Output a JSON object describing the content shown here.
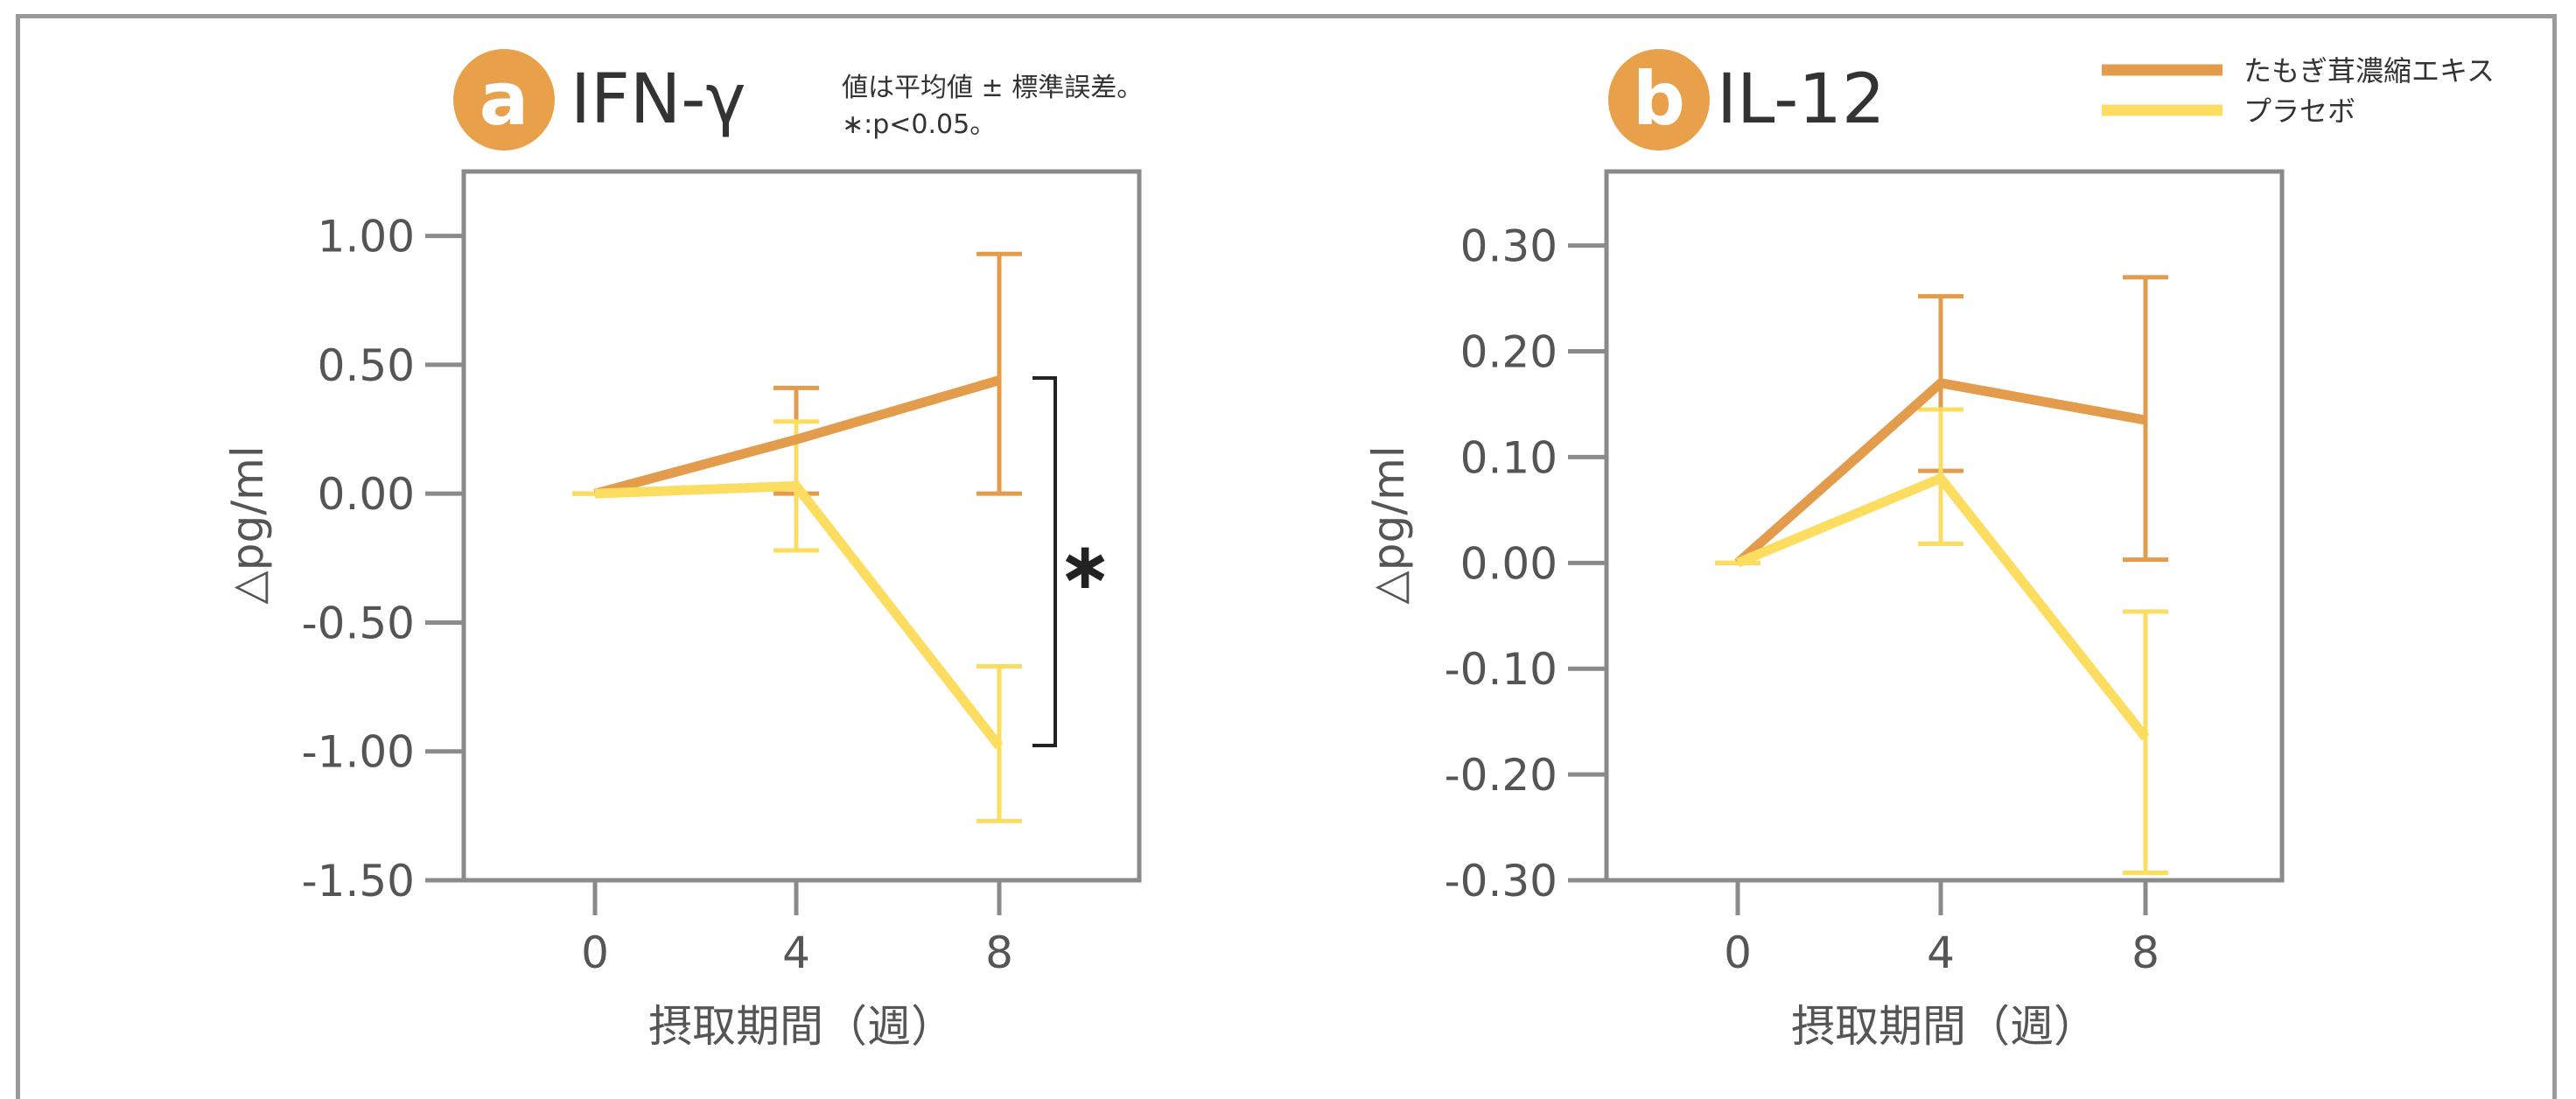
{
  "colors": {
    "extract": "#E39C4C",
    "placebo": "#FCDD5F",
    "axis": "#8a8a8a",
    "badge": "#E8A14A"
  },
  "note": {
    "line1": "値は平均値 ± 標準誤差。",
    "line2": "∗:p<0.05。"
  },
  "legend": {
    "extract_label": "たもぎ茸濃縮エキス",
    "placebo_label": "プラセボ"
  },
  "chart_data": [
    {
      "type": "line",
      "badge": "a",
      "title": "IFN-γ",
      "xlabel": "摂取期間（週）",
      "ylabel": "△pg/ml",
      "x": [
        0,
        4,
        8
      ],
      "x_tick_labels": [
        "0",
        "4",
        "8"
      ],
      "ylim": [
        -1.5,
        1.25
      ],
      "y_ticks": [
        1.0,
        0.5,
        0.0,
        -0.5,
        -1.0,
        -1.5
      ],
      "y_tick_labels": [
        "1.00",
        "0.50",
        "0.00",
        "-0.50",
        "-1.00",
        "-1.50"
      ],
      "significance": "∗",
      "series": [
        {
          "name": "たもぎ茸濃縮エキス",
          "color_key": "extract",
          "values": [
            0.0,
            0.21,
            0.44
          ],
          "err_upper": [
            0.0,
            0.41,
            0.93
          ],
          "err_lower": [
            0.0,
            0.0,
            0.0
          ]
        },
        {
          "name": "プラセボ",
          "color_key": "placebo",
          "values": [
            0.0,
            0.03,
            -0.98
          ],
          "err_upper": [
            0.0,
            0.28,
            -0.67
          ],
          "err_lower": [
            0.0,
            -0.22,
            -1.27
          ]
        }
      ]
    },
    {
      "type": "line",
      "badge": "b",
      "title": "IL-12",
      "xlabel": "摂取期間（週）",
      "ylabel": "△pg/ml",
      "x": [
        0,
        4,
        8
      ],
      "x_tick_labels": [
        "0",
        "4",
        "8"
      ],
      "ylim": [
        -0.3,
        0.37
      ],
      "y_ticks": [
        0.3,
        0.2,
        0.1,
        0.0,
        -0.1,
        -0.2,
        -0.3
      ],
      "y_tick_labels": [
        "0.30",
        "0.20",
        "0.10",
        "0.00",
        "-0.10",
        "-0.20",
        "-0.30"
      ],
      "series": [
        {
          "name": "たもぎ茸濃縮エキス",
          "color_key": "extract",
          "values": [
            0.0,
            0.17,
            0.135
          ],
          "err_upper": [
            0.0,
            0.252,
            0.27
          ],
          "err_lower": [
            0.0,
            0.087,
            0.003
          ]
        },
        {
          "name": "プラセボ",
          "color_key": "placebo",
          "values": [
            0.0,
            0.08,
            -0.165
          ],
          "err_upper": [
            0.0,
            0.145,
            -0.046
          ],
          "err_lower": [
            0.0,
            0.018,
            -0.293
          ]
        }
      ]
    }
  ]
}
